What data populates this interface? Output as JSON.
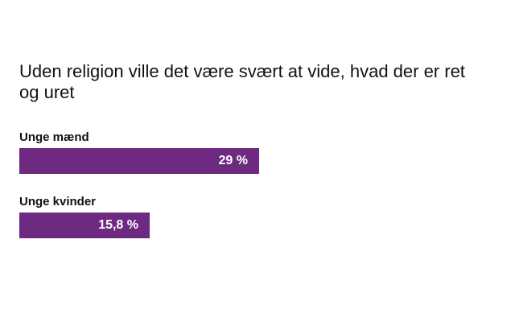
{
  "chart_data": {
    "type": "bar",
    "orientation": "horizontal",
    "title": "Uden religion ville det være svært at vide, hvad der er ret og uret",
    "categories": [
      "Unge mænd",
      "Unge kvinder"
    ],
    "values": [
      29,
      15.8
    ],
    "value_labels": [
      "29 %",
      "15,8 %"
    ],
    "xlim": [
      0,
      57.5
    ],
    "grid": false,
    "bar_color": "#6e2a80"
  }
}
